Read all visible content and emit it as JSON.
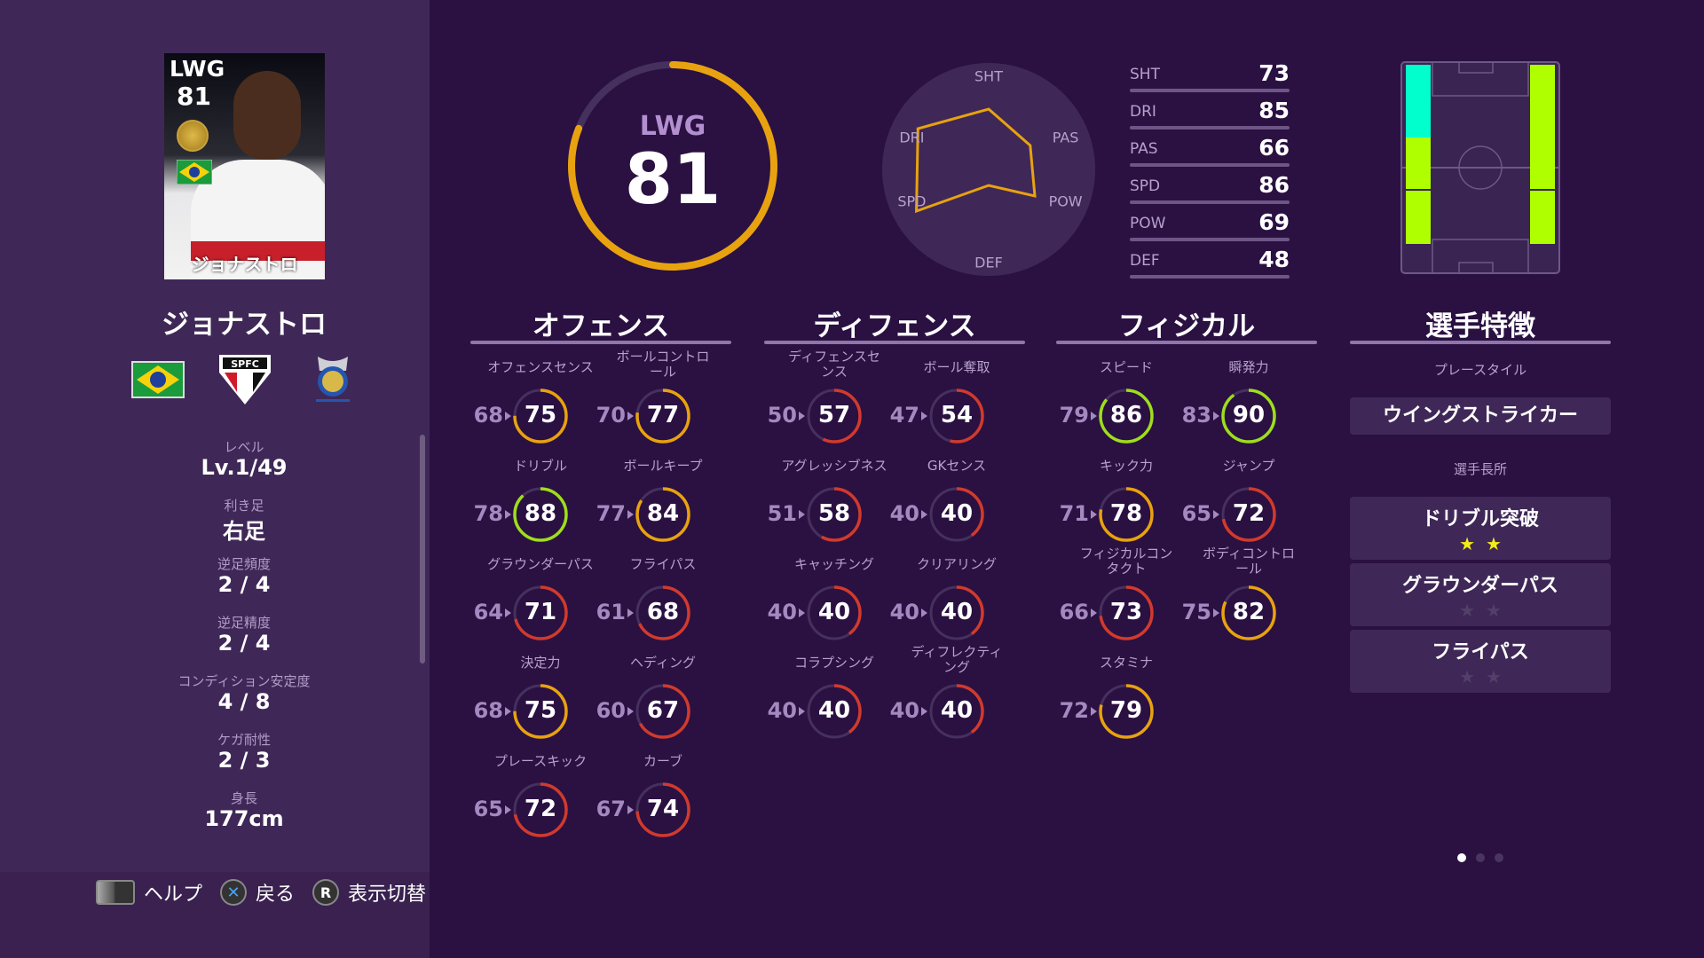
{
  "player": {
    "name": "ジョナストロ",
    "position": "LWG",
    "overall": 81,
    "nationality_icon": "brazil-flag-icon",
    "club_icon": "spfc-crest-icon",
    "league_icon": "brasileirao-league-icon",
    "info": [
      {
        "label": "レベル",
        "value": "Lv.1/49"
      },
      {
        "label": "利き足",
        "value": "右足"
      },
      {
        "label": "逆足頻度",
        "value": "2 / 4"
      },
      {
        "label": "逆足精度",
        "value": "2 / 4"
      },
      {
        "label": "コンディション安定度",
        "value": "4 / 8"
      },
      {
        "label": "ケガ耐性",
        "value": "2 / 3"
      },
      {
        "label": "身長",
        "value": "177cm"
      }
    ]
  },
  "hints": [
    {
      "icon": "touchpad-button-icon",
      "label": "ヘルプ"
    },
    {
      "icon": "cross-button-icon",
      "label": "戻る",
      "glyph": "✕"
    },
    {
      "icon": "r-button-icon",
      "label": "表示切替",
      "glyph": "R"
    }
  ],
  "radar": {
    "axes": [
      "SHT",
      "PAS",
      "POW",
      "DEF",
      "SPD",
      "DRI"
    ],
    "values": {
      "SHT": 73,
      "PAS": 66,
      "POW": 69,
      "DEF": 48,
      "SPD": 86,
      "DRI": 85
    }
  },
  "summary_stats": [
    {
      "label": "SHT",
      "value": 73
    },
    {
      "label": "DRI",
      "value": 85
    },
    {
      "label": "PAS",
      "value": 66
    },
    {
      "label": "SPD",
      "value": 86
    },
    {
      "label": "POW",
      "value": 69
    },
    {
      "label": "DEF",
      "value": 48
    }
  ],
  "pitch": {
    "primary_color": "#00ffcc",
    "secondary_color": "#b0ff00",
    "left": [
      "primary",
      "secondary",
      "secondary",
      "none"
    ],
    "right": [
      "secondary",
      "secondary",
      "secondary",
      "none"
    ]
  },
  "colors": {
    "high": "#9ede1c",
    "mid": "#e9a20f",
    "low": "#d13a2c",
    "track": "#45305e"
  },
  "sections": [
    {
      "title": "オフェンス",
      "items": [
        {
          "label": "オフェンスセンス",
          "before": 68,
          "after": 75
        },
        {
          "label": "ボールコントロール",
          "before": 70,
          "after": 77
        },
        {
          "label": "ドリブル",
          "before": 78,
          "after": 88
        },
        {
          "label": "ボールキープ",
          "before": 77,
          "after": 84
        },
        {
          "label": "グラウンダーパス",
          "before": 64,
          "after": 71
        },
        {
          "label": "フライパス",
          "before": 61,
          "after": 68
        },
        {
          "label": "決定力",
          "before": 68,
          "after": 75
        },
        {
          "label": "ヘディング",
          "before": 60,
          "after": 67
        },
        {
          "label": "プレースキック",
          "before": 65,
          "after": 72
        },
        {
          "label": "カーブ",
          "before": 67,
          "after": 74
        }
      ]
    },
    {
      "title": "ディフェンス",
      "items": [
        {
          "label": "ディフェンスセンス",
          "before": 50,
          "after": 57
        },
        {
          "label": "ボール奪取",
          "before": 47,
          "after": 54
        },
        {
          "label": "アグレッシブネス",
          "before": 51,
          "after": 58
        },
        {
          "label": "GKセンス",
          "before": 40,
          "after": 40
        },
        {
          "label": "キャッチング",
          "before": 40,
          "after": 40
        },
        {
          "label": "クリアリング",
          "before": 40,
          "after": 40
        },
        {
          "label": "コラプシング",
          "before": 40,
          "after": 40
        },
        {
          "label": "ディフレクティング",
          "before": 40,
          "after": 40
        }
      ]
    },
    {
      "title": "フィジカル",
      "items": [
        {
          "label": "スピード",
          "before": 79,
          "after": 86
        },
        {
          "label": "瞬発力",
          "before": 83,
          "after": 90
        },
        {
          "label": "キック力",
          "before": 71,
          "after": 78
        },
        {
          "label": "ジャンプ",
          "before": 65,
          "after": 72
        },
        {
          "label": "フィジカルコンタクト",
          "before": 66,
          "after": 73
        },
        {
          "label": "ボディコントロール",
          "before": 75,
          "after": 82
        },
        {
          "label": "スタミナ",
          "before": 72,
          "after": 79
        }
      ]
    }
  ],
  "traits": {
    "title": "選手特徴",
    "playstyle_label": "プレースタイル",
    "playstyle": "ウイングストライカー",
    "skills_label": "選手長所",
    "skills": [
      {
        "name": "ドリブル突破",
        "stars": 2,
        "max": 2
      },
      {
        "name": "グラウンダーパス",
        "stars": 0,
        "max": 2
      },
      {
        "name": "フライパス",
        "stars": 0,
        "max": 2
      }
    ]
  },
  "pagination": {
    "current": 1,
    "total": 3
  }
}
